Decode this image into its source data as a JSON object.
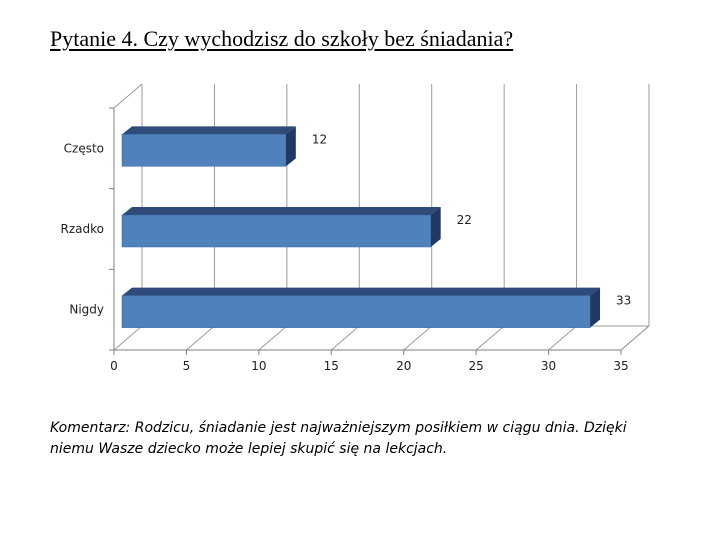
{
  "title": "Pytanie 4. Czy wychodzisz do szkoły bez śniadania?",
  "comment": "Komentarz: Rodzicu, śniadanie jest najważniejszym posiłkiem w ciągu dnia. Dzięki niemu Wasze dziecko może lepiej skupić się na lekcjach.",
  "chart_data": {
    "type": "bar",
    "orientation": "horizontal",
    "style": "3d",
    "categories": [
      "Często",
      "Rzadko",
      "Nigdy"
    ],
    "values": [
      12,
      22,
      33
    ],
    "xlim": [
      0,
      35
    ],
    "xticks": [
      0,
      5,
      10,
      15,
      20,
      25,
      30,
      35
    ],
    "grid": true,
    "legend": "none",
    "bar_color": "#4f81bd",
    "bar_side_color": "#1f3864",
    "bar_top_color": "#2e4b7a"
  }
}
